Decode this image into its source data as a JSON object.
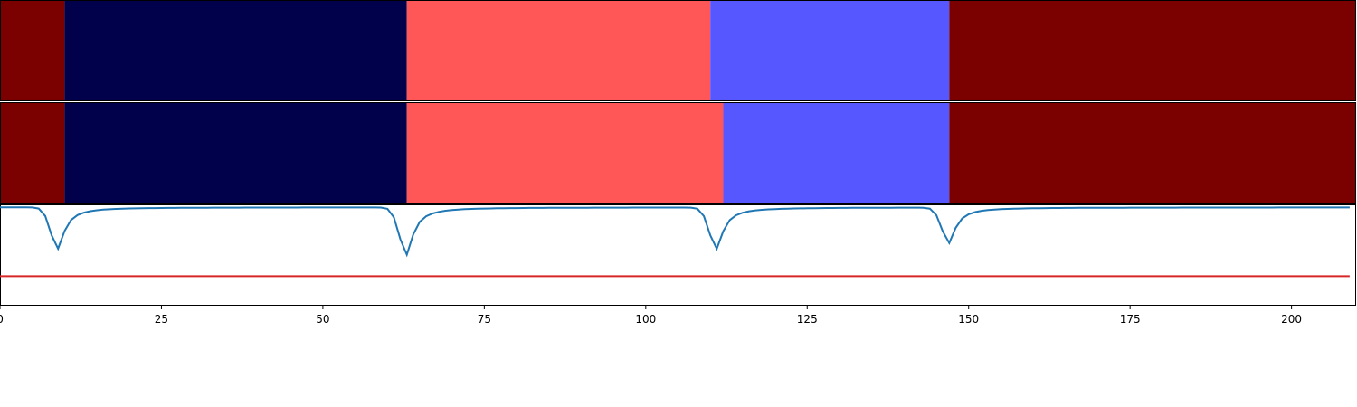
{
  "chart_data": {
    "type": "heatmap",
    "title": "",
    "xlabel": "",
    "ylabel": "",
    "xlim": [
      0,
      210
    ],
    "x_ticks": [
      0,
      25,
      50,
      75,
      100,
      125,
      150,
      175,
      200
    ],
    "x_tick_labels": [
      "0",
      "25",
      "50",
      "75",
      "100",
      "125",
      "150",
      "175",
      "200"
    ],
    "grid": false,
    "legend": "none",
    "segment_rows": [
      {
        "segments": [
          {
            "start": 0,
            "end": 10,
            "color": "#7b0000"
          },
          {
            "start": 10,
            "end": 63,
            "color": "#00004b"
          },
          {
            "start": 63,
            "end": 110,
            "color": "#ff5757"
          },
          {
            "start": 110,
            "end": 147,
            "color": "#5757ff"
          },
          {
            "start": 147,
            "end": 210,
            "color": "#7b0000"
          }
        ]
      },
      {
        "segments": [
          {
            "start": 0,
            "end": 10,
            "color": "#7b0000"
          },
          {
            "start": 10,
            "end": 63,
            "color": "#00004b"
          },
          {
            "start": 63,
            "end": 112,
            "color": "#ff5757"
          },
          {
            "start": 112,
            "end": 147,
            "color": "#5757ff"
          },
          {
            "start": 147,
            "end": 210,
            "color": "#7b0000"
          }
        ]
      }
    ],
    "signal": {
      "color": "#1f77b4",
      "ylim": [
        -1.0,
        0.03
      ],
      "baseline": 0,
      "dips": [
        {
          "x": 9,
          "depth": -0.42
        },
        {
          "x": 63,
          "depth": -0.48
        },
        {
          "x": 111,
          "depth": -0.42
        },
        {
          "x": 147,
          "depth": -0.36
        }
      ]
    },
    "threshold": {
      "y": -0.7,
      "color": "#d62728",
      "x_end": 209
    }
  }
}
